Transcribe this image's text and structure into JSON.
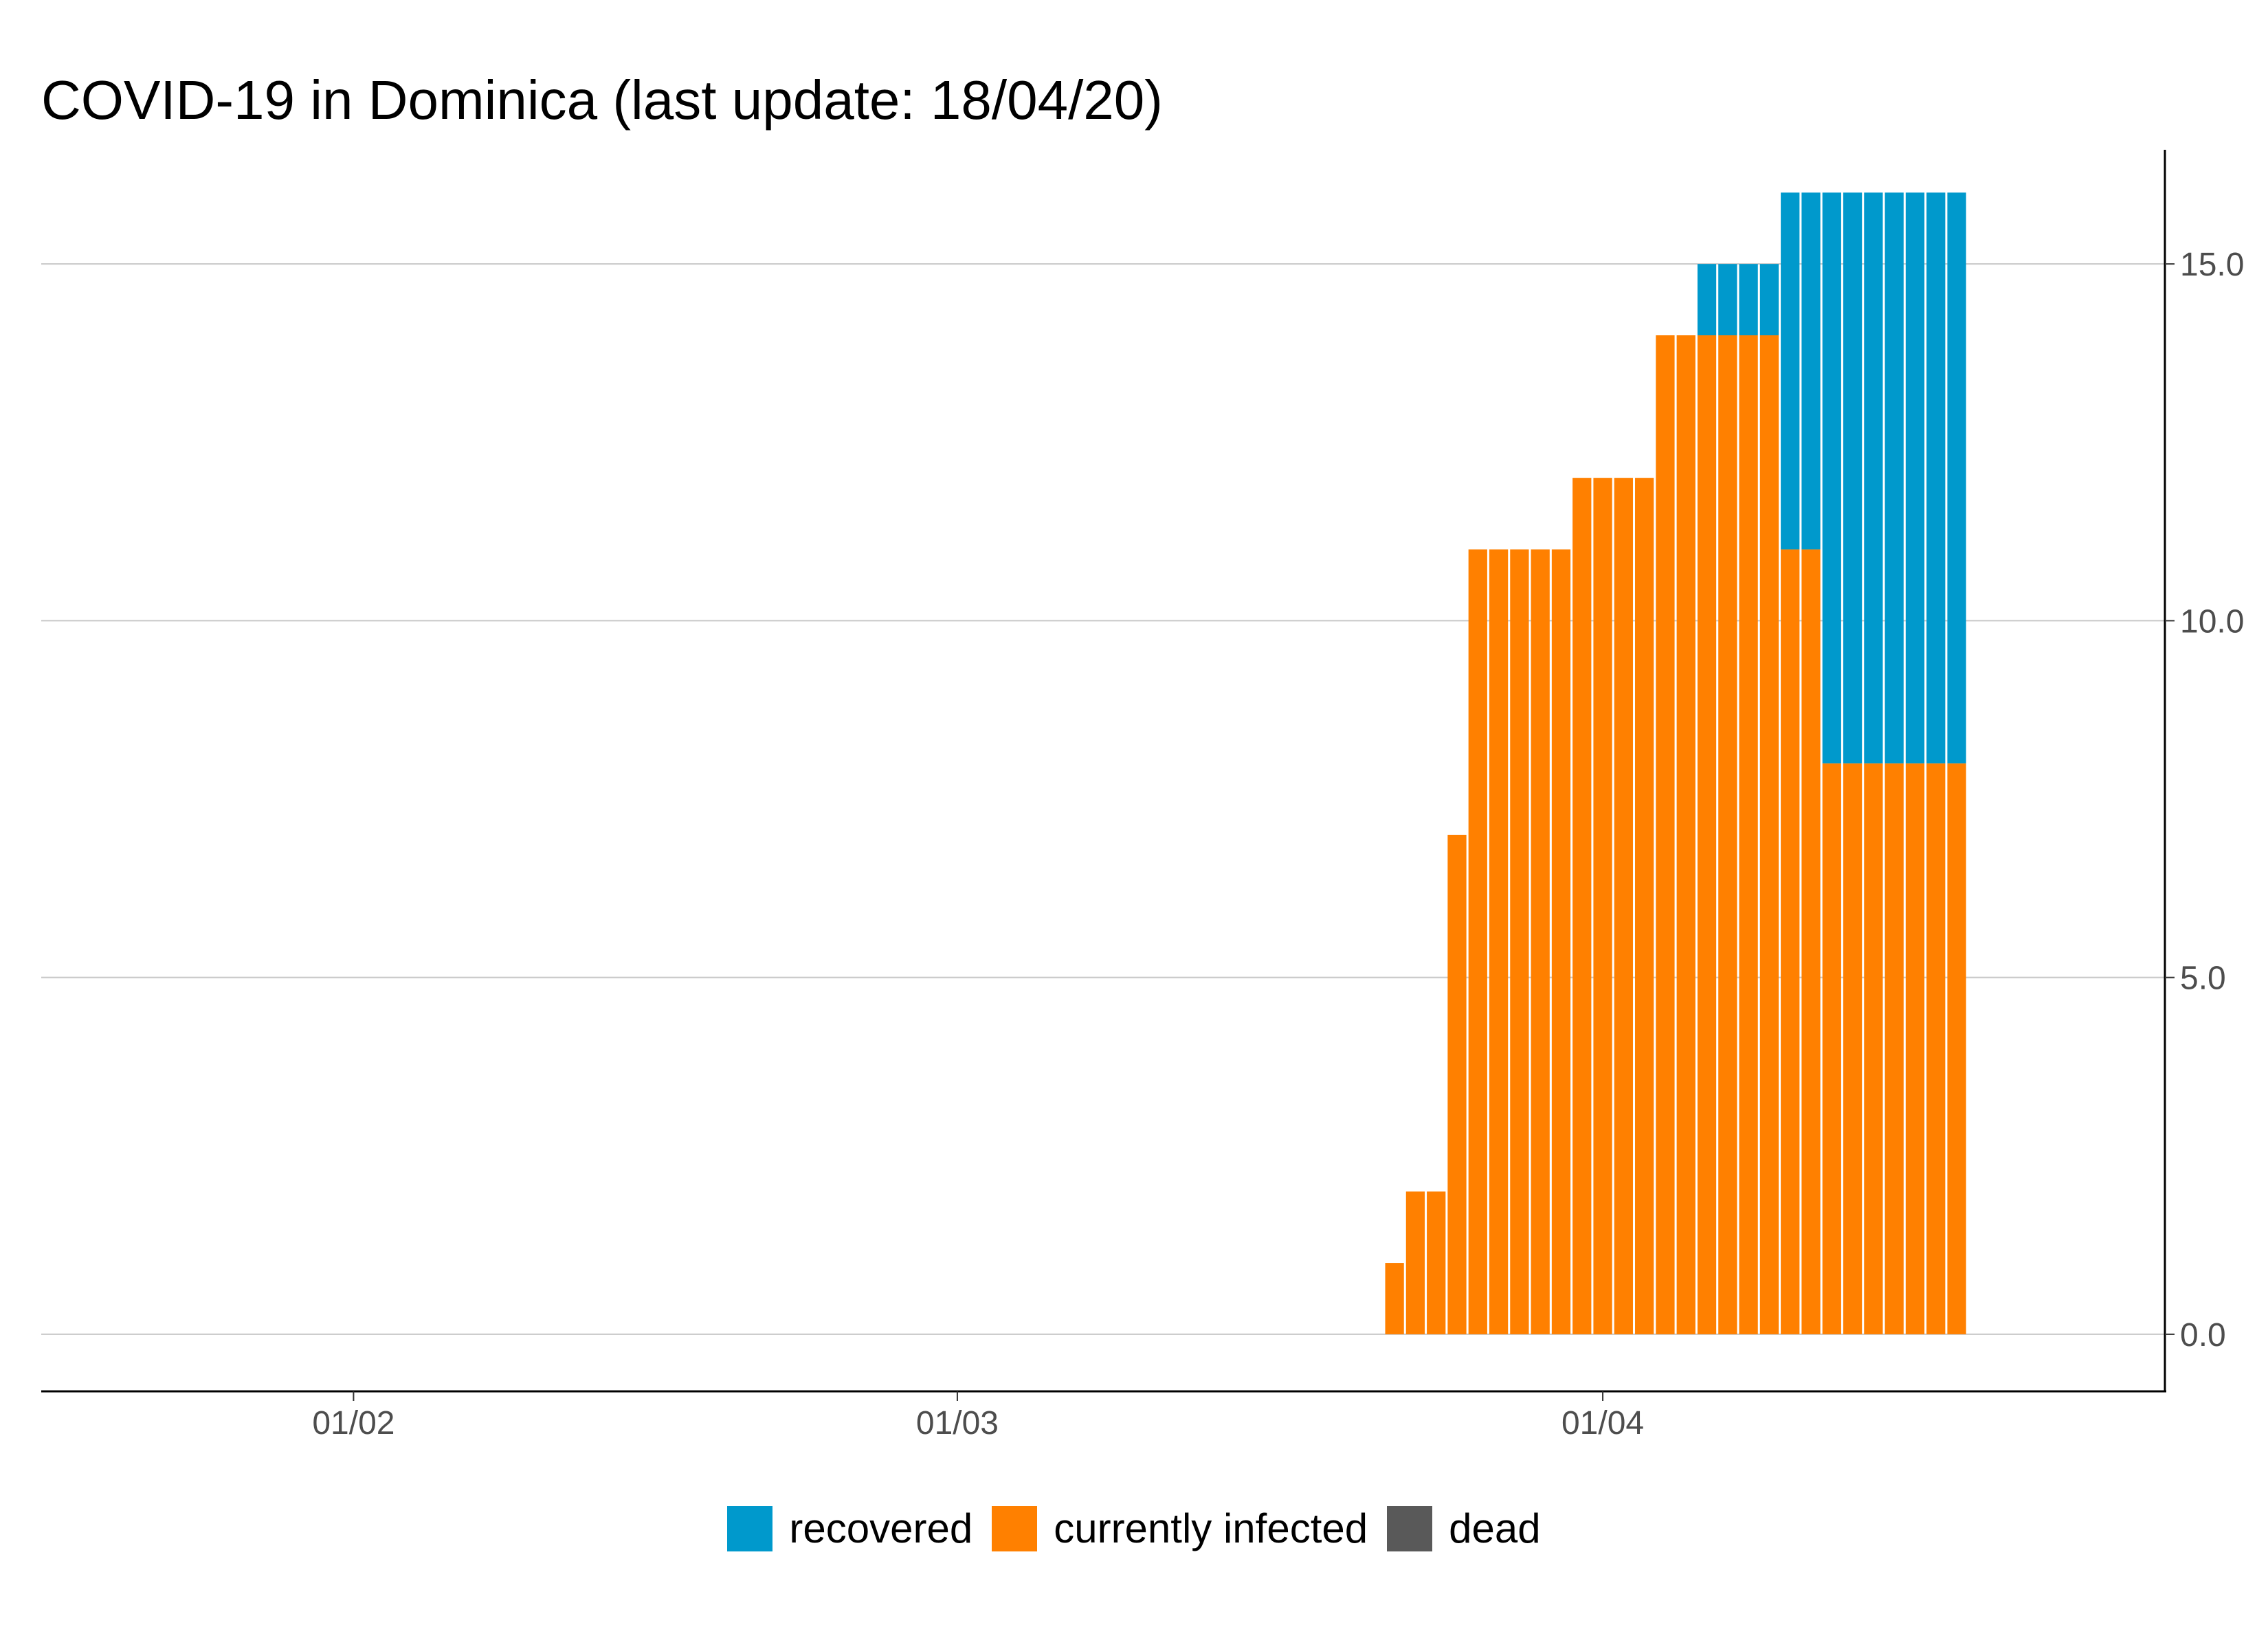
{
  "chart_data": {
    "type": "bar",
    "stacked": true,
    "title": "COVID-19 in Dominica (last update: 18/04/20)",
    "xlabel": "",
    "ylabel": "",
    "x_ticks": [
      "01/02",
      "01/03",
      "01/04"
    ],
    "y_ticks": [
      "0.0",
      "5.0",
      "10.0",
      "15.0"
    ],
    "ylim": [
      -0.8,
      16.6
    ],
    "xlim": [
      "2020-01-17",
      "2020-04-28"
    ],
    "y_axis_position": "right",
    "grid": "horizontal major",
    "legend_position": "bottom",
    "dates": [
      "2020-03-22",
      "2020-03-23",
      "2020-03-24",
      "2020-03-25",
      "2020-03-26",
      "2020-03-27",
      "2020-03-28",
      "2020-03-29",
      "2020-03-30",
      "2020-03-31",
      "2020-04-01",
      "2020-04-02",
      "2020-04-03",
      "2020-04-04",
      "2020-04-05",
      "2020-04-06",
      "2020-04-07",
      "2020-04-08",
      "2020-04-09",
      "2020-04-10",
      "2020-04-11",
      "2020-04-12",
      "2020-04-13",
      "2020-04-14",
      "2020-04-15",
      "2020-04-16",
      "2020-04-17",
      "2020-04-18"
    ],
    "series": [
      {
        "name": "dead",
        "color": "#595959",
        "values": [
          0,
          0,
          0,
          0,
          0,
          0,
          0,
          0,
          0,
          0,
          0,
          0,
          0,
          0,
          0,
          0,
          0,
          0,
          0,
          0,
          0,
          0,
          0,
          0,
          0,
          0,
          0,
          0
        ]
      },
      {
        "name": "currently infected",
        "color": "#ff8000",
        "values": [
          1,
          2,
          2,
          7,
          11,
          11,
          11,
          11,
          11,
          12,
          12,
          12,
          12,
          14,
          14,
          14,
          14,
          14,
          14,
          11,
          11,
          8,
          8,
          8,
          8,
          8,
          8,
          8
        ]
      },
      {
        "name": "recovered",
        "color": "#0099cc",
        "values": [
          0,
          0,
          0,
          0,
          0,
          0,
          0,
          0,
          0,
          0,
          0,
          0,
          0,
          0,
          0,
          1,
          1,
          1,
          1,
          5,
          5,
          8,
          8,
          8,
          8,
          8,
          8,
          8
        ]
      }
    ]
  },
  "legend": {
    "items": [
      {
        "label": "recovered",
        "color": "#0099cc"
      },
      {
        "label": "currently infected",
        "color": "#ff8000"
      },
      {
        "label": "dead",
        "color": "#595959"
      }
    ]
  }
}
